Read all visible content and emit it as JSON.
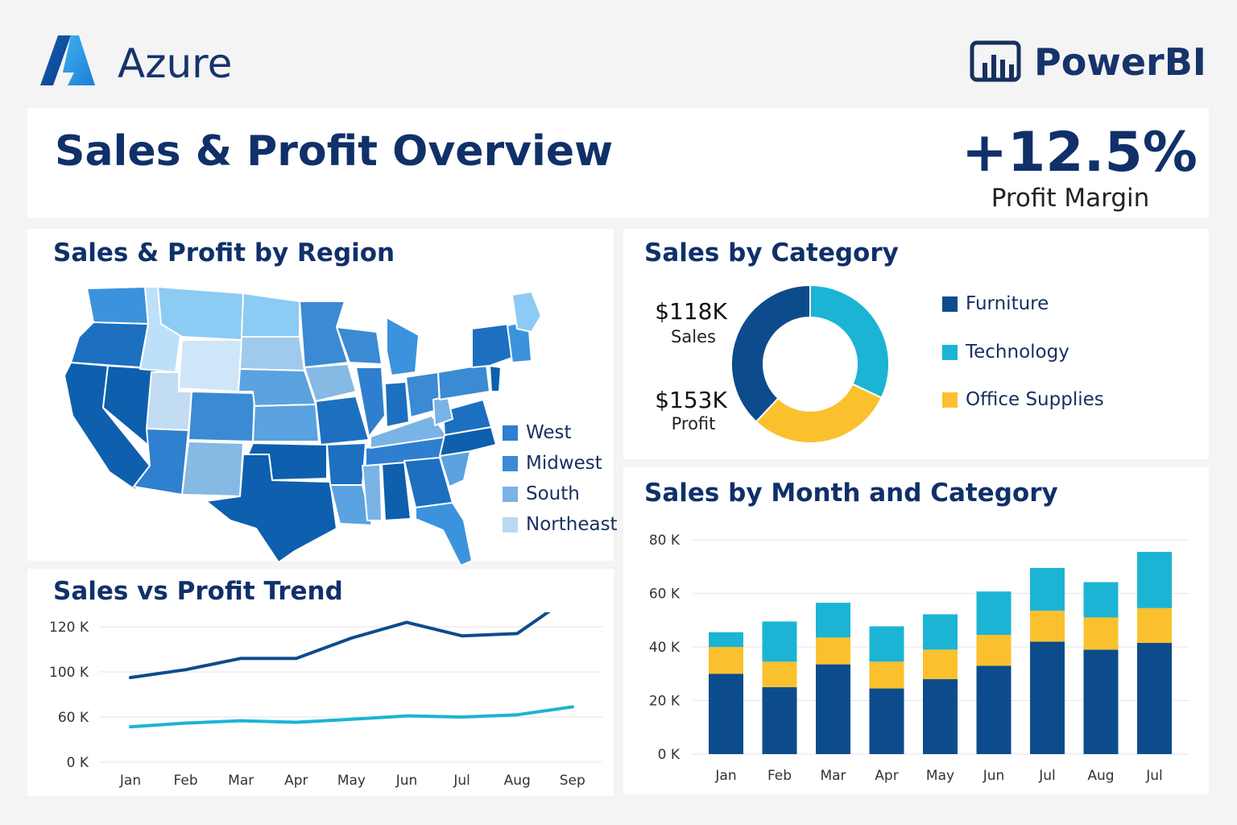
{
  "header": {
    "brand_left": "Azure",
    "brand_right": "PowerBI",
    "logo_left_icon": "azure-logo",
    "logo_right_icon": "powerbi-chart-logo"
  },
  "banner": {
    "title": "Sales & Profit Overview",
    "kpi_value": "+12.5%",
    "kpi_label": "Profit Margin"
  },
  "region_panel": {
    "title": "Sales & Profit by Region",
    "legend": [
      {
        "label": "West",
        "color": "#2f7fd0"
      },
      {
        "label": "Midwest",
        "color": "#3d8ad6"
      },
      {
        "label": "South",
        "color": "#7ab3e6"
      },
      {
        "label": "Northeast",
        "color": "#b9d9f4"
      }
    ]
  },
  "category_panel": {
    "title": "Sales by Category",
    "sales_value": "$118K",
    "sales_label": "Sales",
    "profit_value": "$153K",
    "profit_label": "Profit",
    "legend": [
      {
        "label": "Furniture",
        "color": "#0d4c8c"
      },
      {
        "label": "Technology",
        "color": "#1cb4d4"
      },
      {
        "label": "Office Supplies",
        "color": "#fbc02d"
      }
    ]
  },
  "trend_panel": {
    "title": "Sales vs Profit Trend"
  },
  "month_panel": {
    "title": "Sales by Month and Category"
  },
  "colors": {
    "navy": "#0d4c8c",
    "cyan": "#1cb4d4",
    "yellow": "#fbc02d",
    "title": "#10306a"
  },
  "chart_data": [
    {
      "type": "pie",
      "categories": [
        "Furniture",
        "Technology",
        "Office Supplies"
      ],
      "values": [
        38,
        32,
        30
      ]
    },
    {
      "type": "line",
      "x": [
        "Jan",
        "Feb",
        "Mar",
        "Apr",
        "May",
        "Jun",
        "Jul",
        "Aug",
        "Sep"
      ],
      "y_ticks": [
        "120 K",
        "100 K",
        "60 K",
        "0 K"
      ],
      "y_tick_values": [
        120,
        100,
        60,
        0
      ],
      "series": [
        {
          "values": [
            95,
            101,
            106,
            106,
            115,
            122,
            116,
            117,
            134
          ],
          "color": "#0d4c8c"
        },
        {
          "values": [
            47,
            52,
            55,
            53,
            57,
            61,
            60,
            62,
            69
          ],
          "color": "#1cb4d4"
        }
      ],
      "grid": true
    },
    {
      "type": "bar",
      "stacked": true,
      "categories": [
        "Jan",
        "Feb",
        "Mar",
        "Apr",
        "May",
        "Jun",
        "Jul",
        "Aug",
        "Jul"
      ],
      "y_ticks": [
        "80 K",
        "60 K",
        "40 K",
        "20 K",
        "0 K"
      ],
      "ylim": [
        0,
        80
      ],
      "series": [
        {
          "name": "Furniture",
          "values": [
            30,
            25,
            33.5,
            24.5,
            28,
            33,
            42,
            39,
            41.5
          ]
        },
        {
          "name": "Office Supplies",
          "values": [
            10,
            9.5,
            10,
            10,
            11,
            11.5,
            11.5,
            12,
            13
          ]
        },
        {
          "name": "Technology",
          "values": [
            5.5,
            15,
            13,
            13.2,
            13.2,
            16.2,
            16,
            13.2,
            21
          ]
        }
      ],
      "grid": true
    }
  ]
}
